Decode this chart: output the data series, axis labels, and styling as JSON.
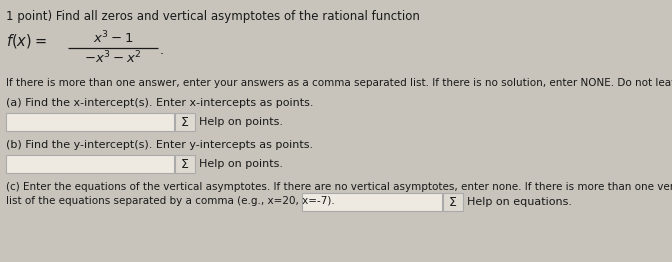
{
  "background_color": "#c8c4bc",
  "title_line": "1 point) Find all zeros and vertical asymptotes of the rational function",
  "instruction": "If there is more than one answer, enter your answers as a comma separated list. If there is no solution, enter NONE. Do not leave a blank empty.",
  "part_a_label": "(a) Find the x-intercept(s). Enter x-intercepts as points.",
  "part_b_label": "(b) Find the y-intercept(s). Enter y-intercepts as points.",
  "part_c_label_1": "(c) Enter the equations of the vertical asymptotes. If there are no vertical asymptotes, enter none. If there is more than one vertical asymptote, enter a",
  "part_c_label_2": "list of the equations separated by a comma (e.g., x=20, x=-7).",
  "sigma_label": "Σ",
  "help_points": "Help on points.",
  "help_equations": "Help on equations.",
  "text_color": "#1a1a1a",
  "box_fill": "#eeeae2",
  "box_edge": "#aaaaaa",
  "sigma_box_fill": "#dedad2",
  "sigma_box_edge": "#aaaaaa",
  "font_size_title": 8.5,
  "font_size_body": 8.0,
  "font_size_math": 9.5,
  "font_size_small": 7.5
}
